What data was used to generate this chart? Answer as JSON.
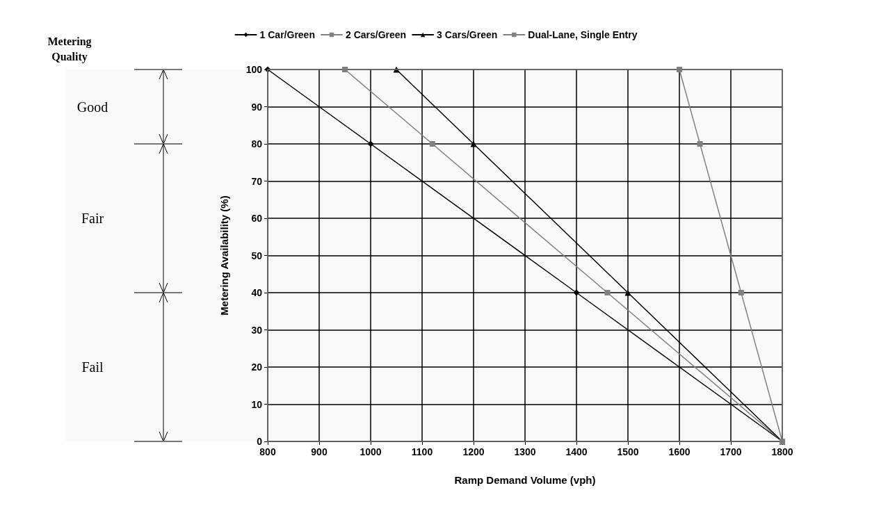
{
  "chart_data": {
    "type": "line",
    "xlabel": "Ramp Demand Volume (vph)",
    "ylabel": "Metering Availability (%)",
    "series": [
      {
        "name": "1 Car/Green",
        "color": "#000000",
        "marker": "diamond",
        "x": [
          800,
          1000,
          1400,
          1800
        ],
        "values": [
          100,
          80,
          40,
          0
        ]
      },
      {
        "name": "2 Cars/Green",
        "color": "#808080",
        "marker": "square",
        "x": [
          950,
          1120,
          1460,
          1800
        ],
        "values": [
          100,
          80,
          40,
          0
        ]
      },
      {
        "name": "3 Cars/Green",
        "color": "#000000",
        "marker": "triangle",
        "x": [
          1050,
          1200,
          1500,
          1800
        ],
        "values": [
          100,
          80,
          40,
          0
        ]
      },
      {
        "name": "Dual-Lane, Single Entry",
        "color": "#808080",
        "marker": "square",
        "x": [
          1600,
          1640,
          1720,
          1800
        ],
        "values": [
          100,
          80,
          40,
          0
        ]
      }
    ],
    "xlim": [
      800,
      1800
    ],
    "xticks": [
      800,
      900,
      1000,
      1100,
      1200,
      1300,
      1400,
      1500,
      1600,
      1700,
      1800
    ],
    "ylim": [
      0,
      100
    ],
    "yticks": [
      0,
      10,
      20,
      30,
      40,
      50,
      60,
      70,
      80,
      90,
      100
    ],
    "grid": true,
    "legend": "top",
    "line_style": "solid",
    "annotations": [
      "Metering Quality"
    ],
    "bands": [
      {
        "axis": "y",
        "from": 80,
        "to": 100,
        "label": "Good"
      },
      {
        "axis": "y",
        "from": 40,
        "to": 80,
        "label": "Fair"
      },
      {
        "axis": "y",
        "from": 0,
        "to": 40,
        "label": "Fail"
      }
    ]
  }
}
